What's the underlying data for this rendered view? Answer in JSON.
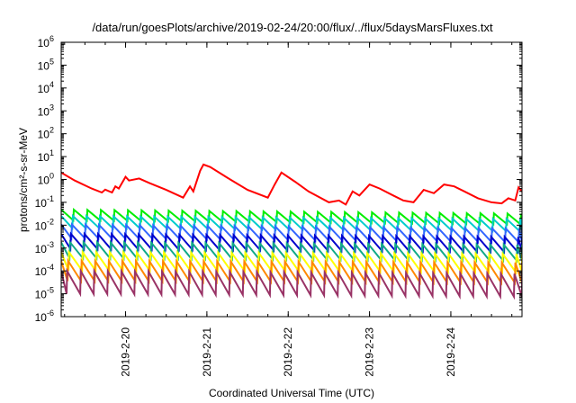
{
  "chart_data": {
    "type": "line",
    "title": "/data/run/goesPlots/archive/2019-02-24/20:00/flux/../flux/5daysMarsFluxes.txt",
    "xlabel": "Coordinated Universal Time (UTC)",
    "ylabel": "protons/cm²-s-sr-MeV",
    "yscale": "log",
    "ylim": [
      1e-06,
      1000000.0
    ],
    "xlim": [
      "2019-02-19 05:00",
      "2019-02-24 21:00"
    ],
    "grid": false,
    "legend": "none",
    "x_ticks": [
      "2019-2-20",
      "2019-2-21",
      "2019-2-22",
      "2019-2-23",
      "2019-2-24"
    ],
    "y_ticks": [
      "-6",
      "-5",
      "-4",
      "-3",
      "-2",
      "-1",
      "0",
      "1",
      "2",
      "3",
      "4",
      "5",
      "6"
    ],
    "y_tick_base": "10",
    "series": [
      {
        "color": "#ff0000",
        "x": [
          "2019-02-19 05:00",
          "2019-02-19 09:00",
          "2019-02-19 14:00",
          "2019-02-19 17:00",
          "2019-02-19 18:00",
          "2019-02-19 20:00",
          "2019-02-19 21:00",
          "2019-02-19 22:00",
          "2019-02-20 00:00",
          "2019-02-20 01:00",
          "2019-02-20 04:00",
          "2019-02-20 07:00",
          "2019-02-20 12:00",
          "2019-02-20 17:00",
          "2019-02-20 19:00",
          "2019-02-20 20:00",
          "2019-02-20 22:00",
          "2019-02-20 23:00",
          "2019-02-21 01:00",
          "2019-02-21 06:00",
          "2019-02-21 12:00",
          "2019-02-21 18:00",
          "2019-02-21 20:00",
          "2019-02-21 22:00",
          "2019-02-22 02:00",
          "2019-02-22 06:00",
          "2019-02-22 12:00",
          "2019-02-22 15:00",
          "2019-02-22 17:00",
          "2019-02-22 19:00",
          "2019-02-22 21:00",
          "2019-02-23 00:00",
          "2019-02-23 03:00",
          "2019-02-23 07:00",
          "2019-02-23 10:00",
          "2019-02-23 13:00",
          "2019-02-23 16:00",
          "2019-02-23 19:00",
          "2019-02-23 22:00",
          "2019-02-24 01:00",
          "2019-02-24 04:00",
          "2019-02-24 08:00",
          "2019-02-24 12:00",
          "2019-02-24 15:00",
          "2019-02-24 17:00",
          "2019-02-24 19:00",
          "2019-02-24 20:00",
          "2019-02-24 21:00"
        ],
        "values": [
          2.0,
          0.9,
          0.4,
          0.27,
          0.36,
          0.27,
          0.5,
          0.4,
          1.3,
          0.9,
          1.1,
          0.7,
          0.35,
          0.16,
          0.5,
          0.3,
          2.4,
          4.5,
          3.5,
          1.2,
          0.35,
          0.16,
          0.6,
          2.0,
          0.8,
          0.3,
          0.1,
          0.12,
          0.08,
          0.3,
          0.2,
          0.6,
          0.4,
          0.2,
          0.12,
          0.1,
          0.35,
          0.25,
          0.6,
          0.5,
          0.3,
          0.15,
          0.1,
          0.09,
          0.15,
          0.12,
          0.45,
          0.3
        ]
      },
      {
        "color": "#00ee00",
        "x": [
          "2019-02-19 05:00",
          "2019-02-24 21:00"
        ],
        "values": [
          0.03,
          0.02
        ],
        "sawtooth": {
          "peaks_per_day": 6,
          "peak_factor": 1.6,
          "trough_factor": 0.55
        }
      },
      {
        "color": "#00cccc",
        "x": [
          "2019-02-19 05:00",
          "2019-02-24 21:00"
        ],
        "values": [
          0.015,
          0.011
        ],
        "sawtooth": {
          "peaks_per_day": 6,
          "peak_factor": 1.7,
          "trough_factor": 0.5
        }
      },
      {
        "color": "#3366ff",
        "x": [
          "2019-02-19 05:00",
          "2019-02-24 21:00"
        ],
        "values": [
          0.006,
          0.004
        ],
        "sawtooth": {
          "peaks_per_day": 6,
          "peak_factor": 1.8,
          "trough_factor": 0.45
        }
      },
      {
        "color": "#0000cc",
        "x": [
          "2019-02-19 05:00",
          "2019-02-24 21:00"
        ],
        "values": [
          0.0022,
          0.0016
        ],
        "sawtooth": {
          "peaks_per_day": 6,
          "peak_factor": 1.9,
          "trough_factor": 0.42
        }
      },
      {
        "color": "#11aa88",
        "x": [
          "2019-02-19 05:00",
          "2019-02-24 21:00"
        ],
        "values": [
          0.0009,
          0.0007
        ],
        "sawtooth": {
          "peaks_per_day": 6,
          "peak_factor": 2.0,
          "trough_factor": 0.4
        }
      },
      {
        "color": "#ffff00",
        "x": [
          "2019-02-19 05:00",
          "2019-02-24 21:00"
        ],
        "values": [
          0.0003,
          0.00025
        ],
        "sawtooth": {
          "peaks_per_day": 6,
          "peak_factor": 2.2,
          "trough_factor": 0.35
        }
      },
      {
        "color": "#ff8800",
        "x": [
          "2019-02-19 05:00",
          "2019-02-24 21:00"
        ],
        "values": [
          0.00012,
          0.0001
        ],
        "sawtooth": {
          "peaks_per_day": 6,
          "peak_factor": 2.3,
          "trough_factor": 0.3
        }
      },
      {
        "color": "#993366",
        "x": [
          "2019-02-19 05:00",
          "2019-02-24 21:00"
        ],
        "values": [
          4e-05,
          3e-05
        ],
        "sawtooth": {
          "peaks_per_day": 6,
          "peak_factor": 2.5,
          "trough_factor": 0.25
        }
      }
    ]
  }
}
